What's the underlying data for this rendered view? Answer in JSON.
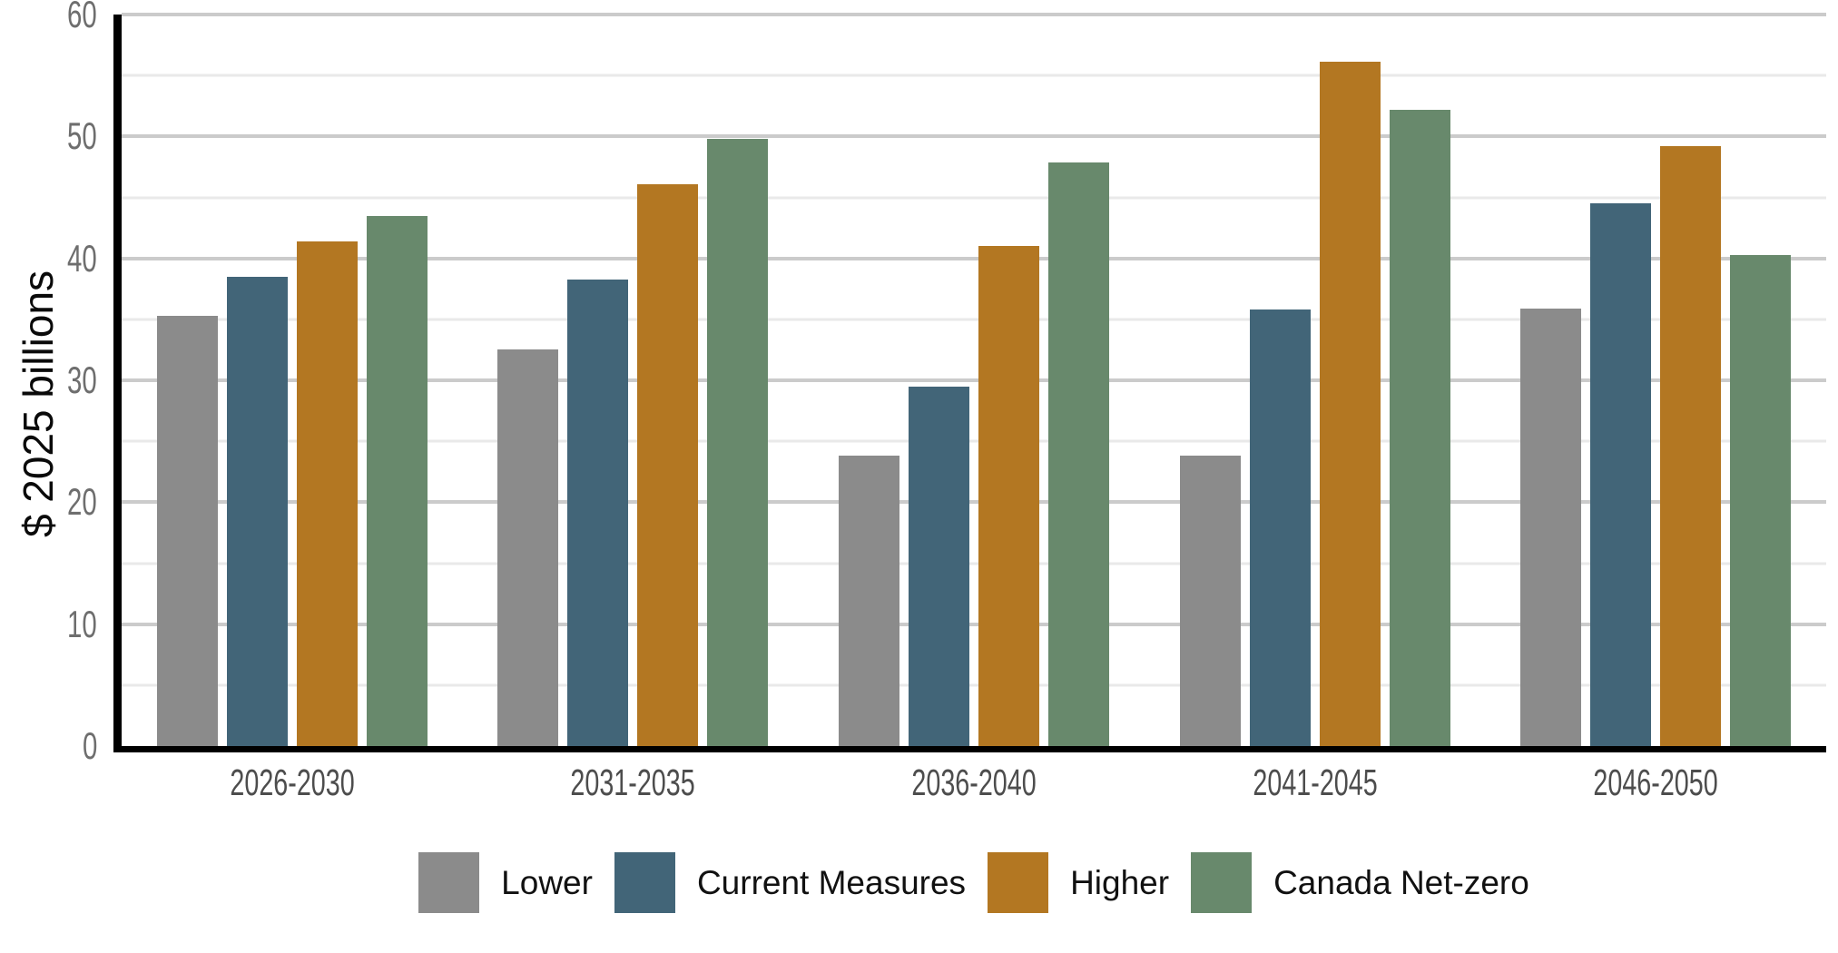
{
  "chart_data": {
    "type": "bar",
    "title": "",
    "xlabel": "",
    "ylabel": "$ 2025 billions",
    "ylim": [
      0,
      60
    ],
    "y_major_ticks": [
      0,
      10,
      20,
      30,
      40,
      50,
      60
    ],
    "y_minor_step": 5,
    "grid": true,
    "legend_position": "bottom",
    "categories": [
      "2026-2030",
      "2031-2035",
      "2036-2040",
      "2041-2045",
      "2046-2050"
    ],
    "series": [
      {
        "name": "Lower",
        "color": "#8b8b8b",
        "values": [
          35.3,
          32.5,
          23.8,
          23.8,
          35.9
        ]
      },
      {
        "name": "Current Measures",
        "color": "#426578",
        "values": [
          38.5,
          38.3,
          29.5,
          35.8,
          44.5
        ]
      },
      {
        "name": "Higher",
        "color": "#b37722",
        "values": [
          41.4,
          46.1,
          41.0,
          56.1,
          49.2
        ]
      },
      {
        "name": "Canada Net-zero",
        "color": "#68896c",
        "values": [
          43.5,
          49.8,
          47.9,
          52.2,
          40.3
        ]
      }
    ]
  },
  "style": {
    "axis_color": "#000000",
    "major_gridline_color": "#cbcbcb",
    "minor_gridline_color": "#e9e9e9",
    "tick_label_color": "#6e6e6e",
    "category_label_color": "#4d4d4d",
    "legend_text_color": "#111111",
    "background_color": "#ffffff"
  }
}
